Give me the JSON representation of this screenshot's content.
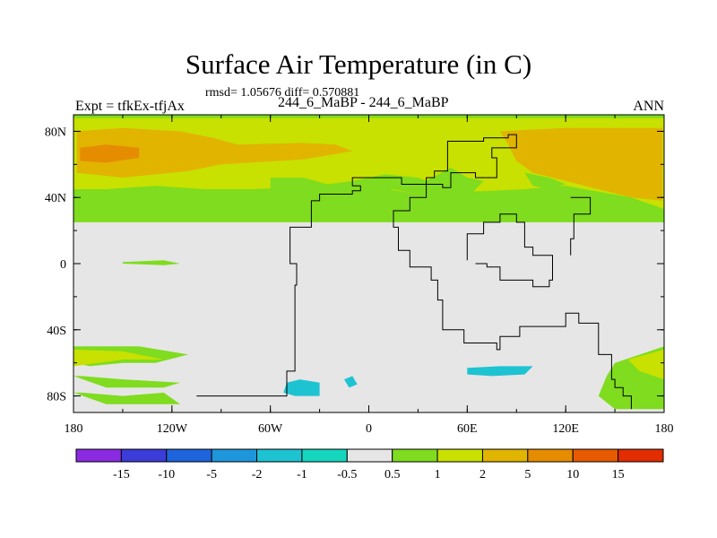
{
  "chart_data": {
    "type": "heatmap",
    "title": "Surface Air Temperature (in C)",
    "stats_line": "rmsd= 1.05676 diff= 0.570881",
    "left_label": "Expt = tfkEx-tfjAx",
    "center_label": "244_6_MaBP - 244_6_MaBP",
    "right_label": "ANN",
    "xlim": [
      -180,
      180
    ],
    "ylim": [
      -90,
      90
    ],
    "x_ticks": [
      {
        "value": -180,
        "label": "180"
      },
      {
        "value": -120,
        "label": "120W"
      },
      {
        "value": -60,
        "label": "60W"
      },
      {
        "value": 0,
        "label": "0"
      },
      {
        "value": 60,
        "label": "60E"
      },
      {
        "value": 120,
        "label": "120E"
      },
      {
        "value": 180,
        "label": "180"
      }
    ],
    "y_ticks": [
      {
        "value": 80,
        "label": "80N"
      },
      {
        "value": 40,
        "label": "40N"
      },
      {
        "value": 0,
        "label": "0"
      },
      {
        "value": -40,
        "label": "40S"
      },
      {
        "value": -80,
        "label": "80S"
      }
    ],
    "colorbar": {
      "colors": [
        "#8a2be2",
        "#3c3cd8",
        "#1e64dc",
        "#1e96dc",
        "#1ec3d2",
        "#14d7be",
        "#e6e6e6",
        "#7fdc1e",
        "#c8e100",
        "#e1b400",
        "#e68c00",
        "#e65a00",
        "#e12d00"
      ],
      "labels": [
        "-15",
        "-10",
        "-5",
        "-2",
        "-1",
        "-0.5",
        "0.5",
        "1",
        "2",
        "5",
        "10",
        "15"
      ]
    },
    "background_class": 6,
    "regions": [
      {
        "cls": 7,
        "pts": [
          [
            -180,
            90
          ],
          [
            180,
            90
          ],
          [
            180,
            25
          ],
          [
            -180,
            25
          ]
        ]
      },
      {
        "cls": 8,
        "pts": [
          [
            -180,
            88
          ],
          [
            180,
            88
          ],
          [
            180,
            33
          ],
          [
            160,
            40
          ],
          [
            120,
            47
          ],
          [
            95,
            45
          ],
          [
            30,
            42
          ],
          [
            0,
            47
          ],
          [
            -30,
            47
          ],
          [
            -50,
            46
          ],
          [
            -70,
            45
          ],
          [
            -100,
            45
          ],
          [
            -130,
            47
          ],
          [
            -160,
            45
          ],
          [
            -180,
            45
          ]
        ]
      },
      {
        "cls": 9,
        "pts": [
          [
            -178,
            80
          ],
          [
            -150,
            82
          ],
          [
            -115,
            80
          ],
          [
            -95,
            76
          ],
          [
            -80,
            72
          ],
          [
            -40,
            73
          ],
          [
            -20,
            72
          ],
          [
            -10,
            68
          ],
          [
            -40,
            63
          ],
          [
            -90,
            60
          ],
          [
            -110,
            56
          ],
          [
            -150,
            52
          ],
          [
            -178,
            55
          ]
        ]
      },
      {
        "cls": 9,
        "pts": [
          [
            80,
            80
          ],
          [
            120,
            82
          ],
          [
            179,
            82
          ],
          [
            179,
            38
          ],
          [
            160,
            40
          ],
          [
            140,
            45
          ],
          [
            120,
            50
          ],
          [
            100,
            55
          ],
          [
            90,
            62
          ],
          [
            85,
            72
          ]
        ]
      },
      {
        "cls": 10,
        "pts": [
          [
            -176,
            70
          ],
          [
            -160,
            72
          ],
          [
            -140,
            70
          ],
          [
            -140,
            64
          ],
          [
            -160,
            61
          ],
          [
            -176,
            62
          ]
        ]
      },
      {
        "cls": 7,
        "pts": [
          [
            -60,
            52
          ],
          [
            -40,
            52
          ],
          [
            -25,
            48
          ],
          [
            -10,
            50
          ],
          [
            10,
            54
          ],
          [
            30,
            52
          ],
          [
            35,
            50
          ],
          [
            50,
            58
          ],
          [
            60,
            52
          ],
          [
            70,
            50
          ],
          [
            65,
            45
          ],
          [
            60,
            38
          ],
          [
            40,
            40
          ],
          [
            30,
            42
          ],
          [
            15,
            45
          ],
          [
            -5,
            45
          ],
          [
            -30,
            40
          ],
          [
            -50,
            40
          ],
          [
            -60,
            45
          ]
        ]
      },
      {
        "cls": 7,
        "pts": [
          [
            95,
            55
          ],
          [
            110,
            52
          ],
          [
            120,
            48
          ],
          [
            110,
            45
          ],
          [
            100,
            47
          ]
        ]
      },
      {
        "cls": 7,
        "pts": [
          [
            -150,
            0
          ],
          [
            -125,
            -1
          ],
          [
            -115,
            0
          ],
          [
            -125,
            2
          ],
          [
            -150,
            1
          ]
        ]
      },
      {
        "cls": 7,
        "pts": [
          [
            -180,
            -50
          ],
          [
            -140,
            -50
          ],
          [
            -110,
            -55
          ],
          [
            -130,
            -60
          ],
          [
            -150,
            -60
          ],
          [
            -170,
            -62
          ],
          [
            -180,
            -60
          ]
        ]
      },
      {
        "cls": 8,
        "pts": [
          [
            -180,
            -52
          ],
          [
            -150,
            -53
          ],
          [
            -125,
            -58
          ],
          [
            -150,
            -58
          ],
          [
            -180,
            -62
          ]
        ]
      },
      {
        "cls": 7,
        "pts": [
          [
            -180,
            -68
          ],
          [
            -160,
            -75
          ],
          [
            -125,
            -75
          ],
          [
            -115,
            -72
          ],
          [
            -150,
            -70
          ],
          [
            -175,
            -68
          ]
        ]
      },
      {
        "cls": 7,
        "pts": [
          [
            -180,
            -78
          ],
          [
            -160,
            -85
          ],
          [
            -115,
            -85
          ],
          [
            -125,
            -78
          ],
          [
            -150,
            -80
          ],
          [
            -175,
            -78
          ]
        ]
      },
      {
        "cls": 7,
        "pts": [
          [
            150,
            -60
          ],
          [
            180,
            -50
          ],
          [
            180,
            -88
          ],
          [
            150,
            -88
          ],
          [
            140,
            -80
          ],
          [
            145,
            -68
          ]
        ]
      },
      {
        "cls": 8,
        "pts": [
          [
            158,
            -58
          ],
          [
            180,
            -52
          ],
          [
            180,
            -70
          ],
          [
            165,
            -65
          ]
        ]
      },
      {
        "cls": 4,
        "pts": [
          [
            -50,
            -72
          ],
          [
            -42,
            -70
          ],
          [
            -30,
            -72
          ],
          [
            -30,
            -80
          ],
          [
            -45,
            -80
          ],
          [
            -52,
            -78
          ]
        ]
      },
      {
        "cls": 4,
        "pts": [
          [
            -15,
            -70
          ],
          [
            -10,
            -68
          ],
          [
            -7,
            -73
          ],
          [
            -12,
            -75
          ]
        ]
      },
      {
        "cls": 4,
        "pts": [
          [
            60,
            -63
          ],
          [
            80,
            -62
          ],
          [
            100,
            -62
          ],
          [
            95,
            -67
          ],
          [
            75,
            -68
          ],
          [
            60,
            -67
          ]
        ]
      }
    ],
    "coastlines": [
      [
        [
          -105,
          -80
        ],
        [
          -53,
          -80
        ],
        [
          -50,
          -65
        ],
        [
          -45,
          -38
        ],
        [
          -45,
          -13
        ],
        [
          -44,
          0
        ],
        [
          -48,
          2
        ],
        [
          -48,
          22
        ],
        [
          -35,
          38
        ],
        [
          -30,
          42
        ],
        [
          -10,
          44
        ],
        [
          -5,
          47
        ],
        [
          -10,
          52
        ],
        [
          5,
          52
        ],
        [
          20,
          48
        ],
        [
          35,
          52
        ],
        [
          40,
          56
        ],
        [
          48,
          74
        ],
        [
          70,
          76
        ],
        [
          85,
          78
        ],
        [
          90,
          70
        ],
        [
          75,
          64
        ],
        [
          78,
          52
        ],
        [
          65,
          55
        ],
        [
          50,
          46
        ],
        [
          45,
          48
        ],
        [
          35,
          40
        ],
        [
          25,
          32
        ],
        [
          15,
          22
        ],
        [
          18,
          8
        ],
        [
          25,
          -2
        ],
        [
          38,
          -10
        ],
        [
          42,
          -22
        ],
        [
          45,
          -40
        ],
        [
          58,
          -48
        ],
        [
          78,
          -52
        ],
        [
          80,
          -44
        ],
        [
          92,
          -38
        ],
        [
          120,
          -30
        ],
        [
          128,
          -36
        ],
        [
          140,
          -55
        ],
        [
          148,
          -70
        ],
        [
          150,
          -75
        ],
        [
          155,
          -80
        ],
        [
          160,
          -88
        ]
      ],
      [
        [
          65,
          0
        ],
        [
          72,
          -2
        ],
        [
          80,
          -10
        ],
        [
          100,
          -14
        ],
        [
          110,
          -10
        ],
        [
          112,
          5
        ],
        [
          100,
          10
        ],
        [
          95,
          25
        ],
        [
          90,
          30
        ],
        [
          80,
          25
        ],
        [
          70,
          18
        ],
        [
          60,
          2
        ]
      ],
      [
        [
          123,
          40
        ],
        [
          135,
          30
        ],
        [
          125,
          15
        ],
        [
          123,
          5
        ]
      ]
    ]
  }
}
